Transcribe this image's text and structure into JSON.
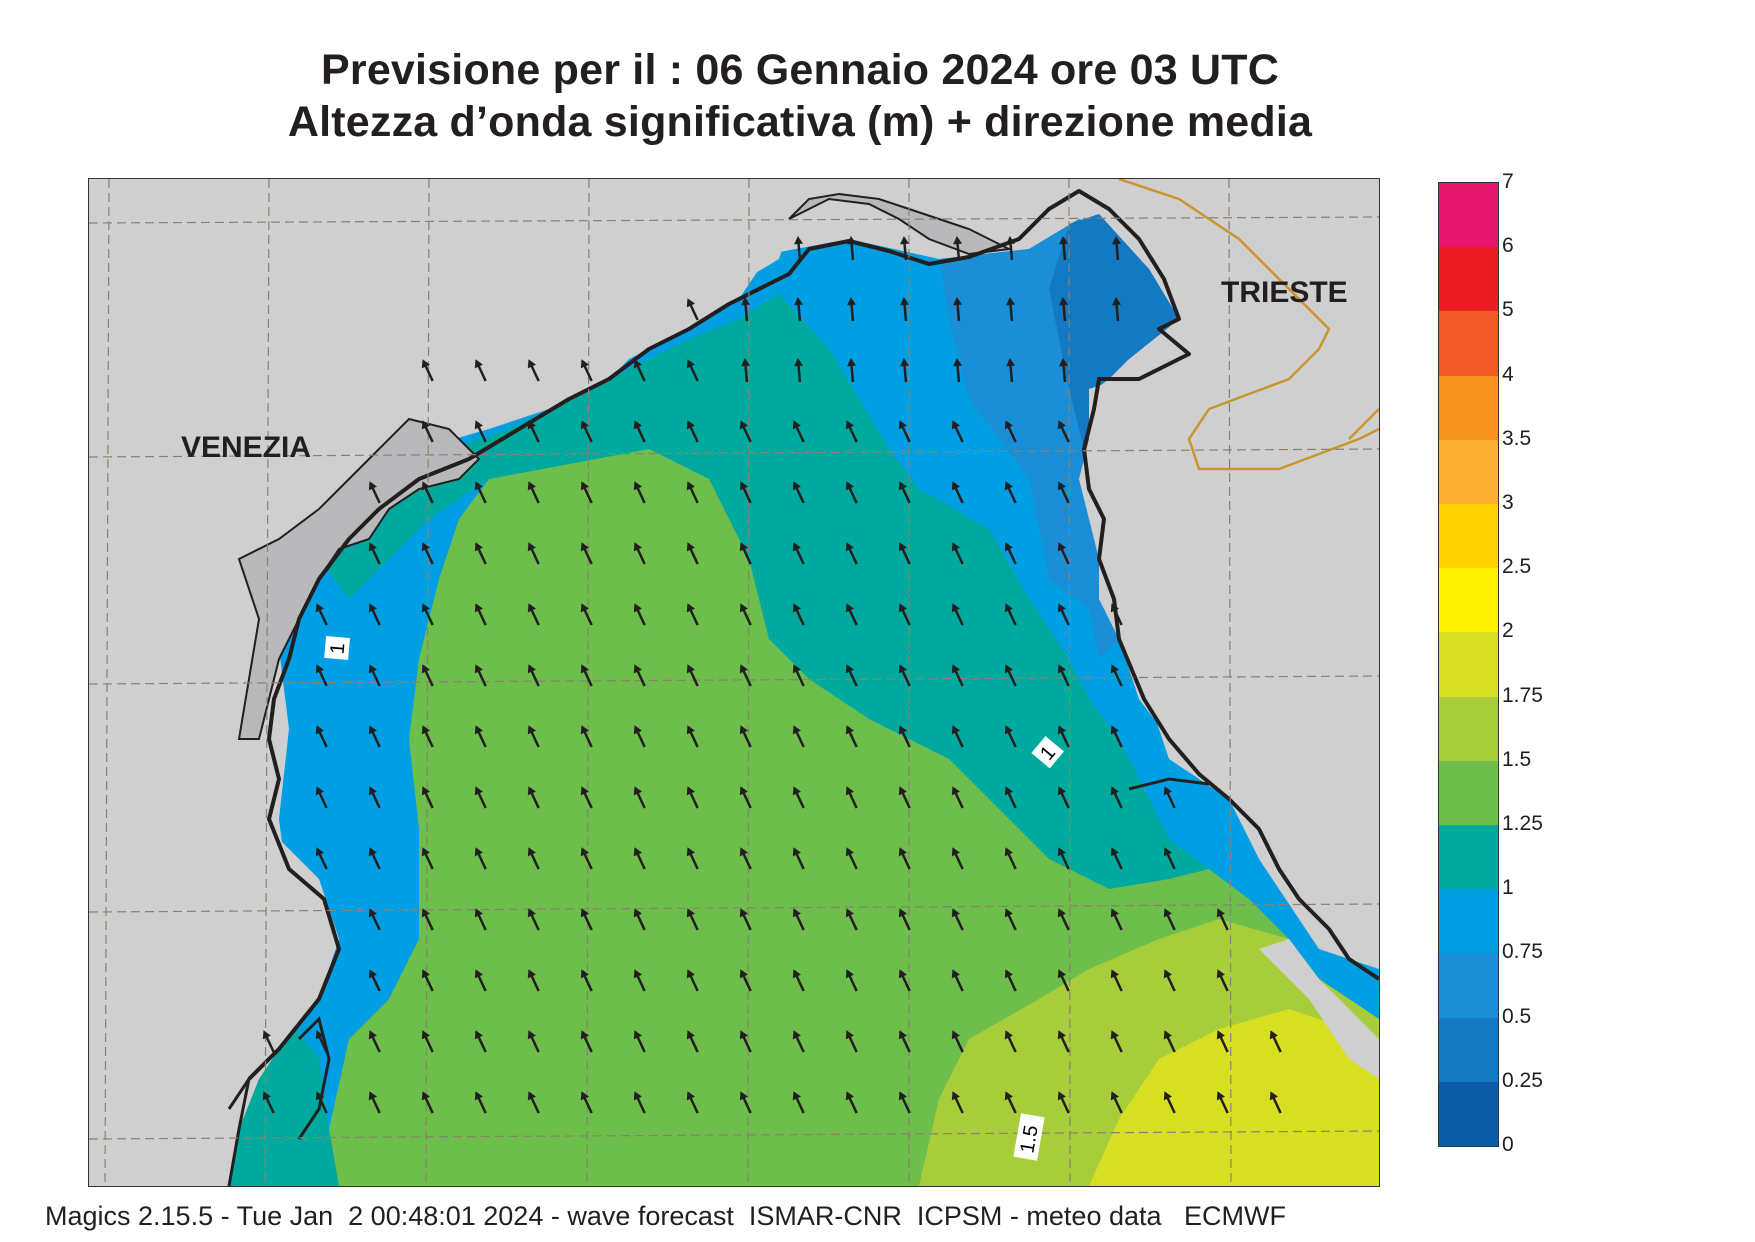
{
  "title": {
    "line1": "Previsione per il  :  06  Gennaio  2024   ore 03 UTC",
    "line2": "Altezza d’onda significativa (m) + direzione media"
  },
  "map": {
    "cities": [
      {
        "name": "VENEZIA"
      },
      {
        "name": "TRIESTE"
      }
    ],
    "contour_labels": [
      "1",
      "1",
      "1.5"
    ],
    "mean_wave_direction": "toward north-northwest",
    "colors": {
      "land": "#cfcfd0",
      "coastline": "#231f20",
      "border": "#c8952e",
      "arrow": "#231f20",
      "grid": "#8c8070"
    }
  },
  "legend": {
    "unit": "m",
    "labels": [
      "7",
      "6",
      "5",
      "4",
      "3.5",
      "3",
      "2.5",
      "2",
      "1.75",
      "1.5",
      "1.25",
      "1",
      "0.75",
      "0.5",
      "0.25",
      "0"
    ],
    "bands": [
      {
        "from": "6",
        "to": "7",
        "color": "#e8176d"
      },
      {
        "from": "5",
        "to": "6",
        "color": "#ec1c24"
      },
      {
        "from": "4",
        "to": "5",
        "color": "#f15a24"
      },
      {
        "from": "3.5",
        "to": "4",
        "color": "#f7941d"
      },
      {
        "from": "3",
        "to": "3.5",
        "color": "#fbb034"
      },
      {
        "from": "2.5",
        "to": "3",
        "color": "#ffd200"
      },
      {
        "from": "2",
        "to": "2.5",
        "color": "#fff200"
      },
      {
        "from": "1.75",
        "to": "2",
        "color": "#d7df23"
      },
      {
        "from": "1.5",
        "to": "1.75",
        "color": "#a7cd3a"
      },
      {
        "from": "1.25",
        "to": "1.5",
        "color": "#6dbe4b"
      },
      {
        "from": "1",
        "to": "1.25",
        "color": "#00a99d"
      },
      {
        "from": "0.75",
        "to": "1",
        "color": "#009fe3"
      },
      {
        "from": "0.5",
        "to": "0.75",
        "color": "#1a8fd8"
      },
      {
        "from": "0.25",
        "to": "0.5",
        "color": "#1279c2"
      },
      {
        "from": "0",
        "to": "0.25",
        "color": "#0d5aa8"
      }
    ]
  },
  "footer": "Magics 2.15.5 - Tue Jan  2 00:48:01 2024 - wave forecast  ISMAR-CNR  ICPSM - meteo data   ECMWF"
}
